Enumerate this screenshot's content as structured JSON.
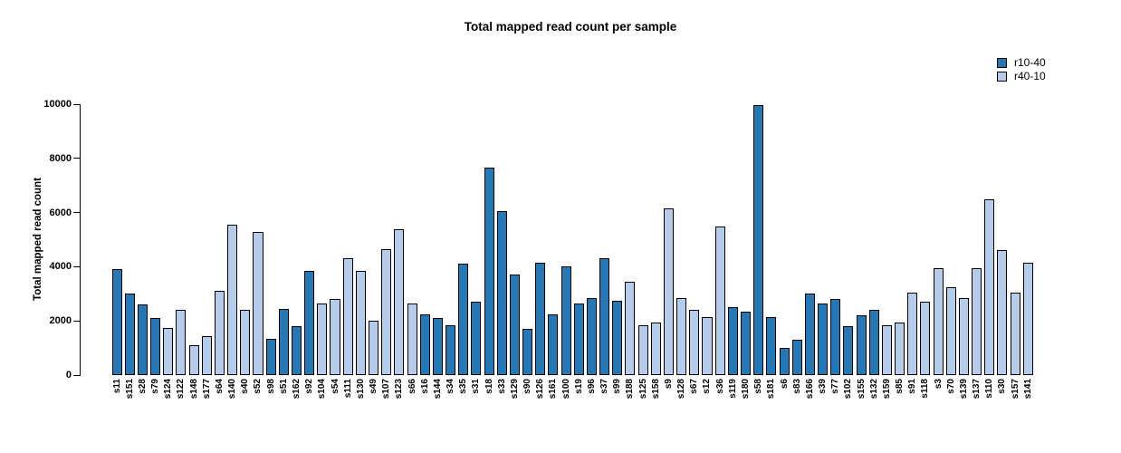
{
  "chart_data": {
    "type": "bar",
    "title": "Total mapped read count per sample",
    "xlabel": "",
    "ylabel": "Total mapped read count",
    "ylim": [
      0,
      10000
    ],
    "yticks": [
      0,
      2000,
      4000,
      6000,
      8000,
      10000
    ],
    "grid": false,
    "legend_position": "top-right",
    "legend": [
      {
        "label": "r10-40",
        "color": "#2478b5"
      },
      {
        "label": "r40-10",
        "color": "#b5cbea"
      }
    ],
    "categories": [
      "s11",
      "s151",
      "s28",
      "s79",
      "s124",
      "s122",
      "s148",
      "s177",
      "s64",
      "s140",
      "s40",
      "s52",
      "s98",
      "s51",
      "s162",
      "s92",
      "s104",
      "s54",
      "s111",
      "s130",
      "s49",
      "s107",
      "s123",
      "s66",
      "s16",
      "s144",
      "s34",
      "s35",
      "s31",
      "s18",
      "s33",
      "s129",
      "s90",
      "s126",
      "s161",
      "s100",
      "s19",
      "s96",
      "s37",
      "s99",
      "s188",
      "s125",
      "s158",
      "s9",
      "s128",
      "s67",
      "s12",
      "s36",
      "s119",
      "s180",
      "s58",
      "s181",
      "s6",
      "s83",
      "s166",
      "s39",
      "s77",
      "s102",
      "s155",
      "s132",
      "s159",
      "s85",
      "s91",
      "s118",
      "s3",
      "s70",
      "s139",
      "s137",
      "s110",
      "s30",
      "s157",
      "s141"
    ],
    "values": [
      3900,
      3000,
      2600,
      2100,
      1750,
      2400,
      1100,
      1450,
      3100,
      5550,
      2400,
      5300,
      1350,
      2450,
      1800,
      3850,
      2650,
      2800,
      4300,
      3850,
      2000,
      4650,
      5400,
      2650,
      2250,
      2100,
      1850,
      4100,
      2700,
      7650,
      6050,
      3700,
      1700,
      4150,
      2250,
      4000,
      2650,
      2850,
      4300,
      2750,
      3450,
      1850,
      1950,
      6150,
      2850,
      2400,
      2150,
      5500,
      2500,
      2350,
      9950,
      2150,
      1000,
      1300,
      3000,
      2650,
      2800,
      1800,
      2200,
      2400,
      1850,
      1950,
      3050,
      2700,
      3950,
      3250,
      2850,
      3950,
      6500,
      4600,
      3050,
      4150
    ],
    "groups": [
      "r10-40",
      "r10-40",
      "r10-40",
      "r10-40",
      "r40-10",
      "r40-10",
      "r40-10",
      "r40-10",
      "r40-10",
      "r40-10",
      "r40-10",
      "r40-10",
      "r10-40",
      "r10-40",
      "r10-40",
      "r10-40",
      "r40-10",
      "r40-10",
      "r40-10",
      "r40-10",
      "r40-10",
      "r40-10",
      "r40-10",
      "r40-10",
      "r10-40",
      "r10-40",
      "r10-40",
      "r10-40",
      "r10-40",
      "r10-40",
      "r10-40",
      "r10-40",
      "r10-40",
      "r10-40",
      "r10-40",
      "r10-40",
      "r10-40",
      "r10-40",
      "r10-40",
      "r10-40",
      "r40-10",
      "r40-10",
      "r40-10",
      "r40-10",
      "r40-10",
      "r40-10",
      "r40-10",
      "r40-10",
      "r10-40",
      "r10-40",
      "r10-40",
      "r10-40",
      "r10-40",
      "r10-40",
      "r10-40",
      "r10-40",
      "r10-40",
      "r10-40",
      "r10-40",
      "r10-40",
      "r40-10",
      "r40-10",
      "r40-10",
      "r40-10",
      "r40-10",
      "r40-10",
      "r40-10",
      "r40-10",
      "r40-10",
      "r40-10",
      "r40-10",
      "r40-10"
    ]
  }
}
